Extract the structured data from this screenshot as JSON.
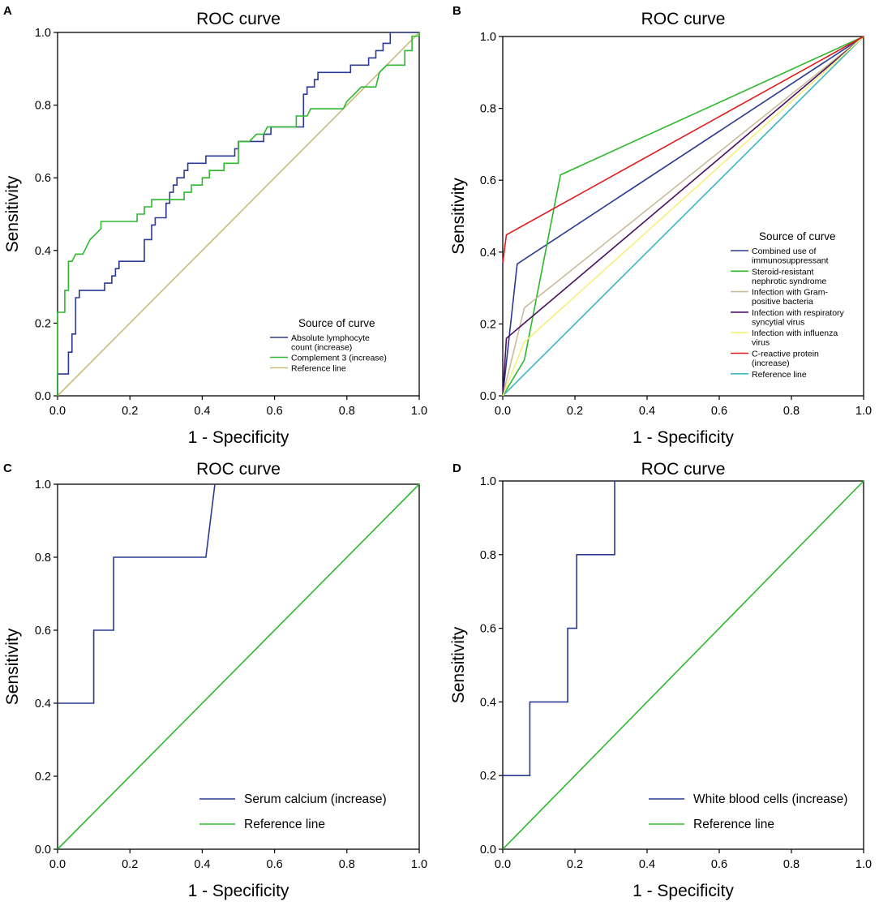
{
  "figure": {
    "panels": [
      {
        "letter": "A",
        "legend_title": "Source of curve"
      },
      {
        "letter": "B",
        "legend_title": "Source of curve"
      },
      {
        "letter": "C",
        "legend_title": ""
      },
      {
        "letter": "D",
        "legend_title": ""
      }
    ]
  },
  "chart_data": [
    {
      "panel": "A",
      "type": "line",
      "title": "ROC curve",
      "xlabel": "1 - Specificity",
      "ylabel": "Sensitivity",
      "xlim": [
        0,
        1
      ],
      "ylim": [
        0,
        1
      ],
      "xticks": [
        "0.0",
        "0.2",
        "0.4",
        "0.6",
        "0.8",
        "1.0"
      ],
      "yticks": [
        "0.0",
        "0.2",
        "0.4",
        "0.6",
        "0.8",
        "1.0"
      ],
      "legend_title": "Source of curve",
      "legend_position": "bottom-right",
      "series": [
        {
          "name": "Absolute lymphocyte count (increase)",
          "legend_lines": [
            "Absolute lymphocyte",
            "count (increase)"
          ],
          "color": "#2b3a93",
          "points": [
            [
              0,
              0
            ],
            [
              0,
              0.06
            ],
            [
              0.03,
              0.06
            ],
            [
              0.03,
              0.12
            ],
            [
              0.04,
              0.12
            ],
            [
              0.04,
              0.17
            ],
            [
              0.05,
              0.17
            ],
            [
              0.05,
              0.27
            ],
            [
              0.06,
              0.27
            ],
            [
              0.06,
              0.29
            ],
            [
              0.13,
              0.29
            ],
            [
              0.13,
              0.31
            ],
            [
              0.15,
              0.31
            ],
            [
              0.15,
              0.33
            ],
            [
              0.16,
              0.33
            ],
            [
              0.16,
              0.35
            ],
            [
              0.17,
              0.35
            ],
            [
              0.17,
              0.37
            ],
            [
              0.24,
              0.37
            ],
            [
              0.24,
              0.43
            ],
            [
              0.26,
              0.43
            ],
            [
              0.26,
              0.47
            ],
            [
              0.27,
              0.47
            ],
            [
              0.27,
              0.49
            ],
            [
              0.3,
              0.49
            ],
            [
              0.3,
              0.53
            ],
            [
              0.31,
              0.53
            ],
            [
              0.31,
              0.56
            ],
            [
              0.32,
              0.56
            ],
            [
              0.32,
              0.58
            ],
            [
              0.33,
              0.58
            ],
            [
              0.33,
              0.6
            ],
            [
              0.35,
              0.6
            ],
            [
              0.35,
              0.62
            ],
            [
              0.36,
              0.62
            ],
            [
              0.36,
              0.64
            ],
            [
              0.41,
              0.64
            ],
            [
              0.41,
              0.66
            ],
            [
              0.49,
              0.66
            ],
            [
              0.49,
              0.68
            ],
            [
              0.5,
              0.68
            ],
            [
              0.5,
              0.7
            ],
            [
              0.57,
              0.7
            ],
            [
              0.57,
              0.72
            ],
            [
              0.59,
              0.72
            ],
            [
              0.59,
              0.74
            ],
            [
              0.68,
              0.74
            ],
            [
              0.68,
              0.83
            ],
            [
              0.69,
              0.83
            ],
            [
              0.69,
              0.85
            ],
            [
              0.71,
              0.85
            ],
            [
              0.71,
              0.87
            ],
            [
              0.72,
              0.87
            ],
            [
              0.72,
              0.89
            ],
            [
              0.81,
              0.89
            ],
            [
              0.81,
              0.91
            ],
            [
              0.86,
              0.91
            ],
            [
              0.86,
              0.93
            ],
            [
              0.88,
              0.93
            ],
            [
              0.88,
              0.95
            ],
            [
              0.9,
              0.95
            ],
            [
              0.9,
              0.97
            ],
            [
              0.92,
              0.97
            ],
            [
              0.92,
              1.0
            ],
            [
              1,
              1
            ]
          ]
        },
        {
          "name": "Complement 3 (increase)",
          "legend_lines": [
            "Complement 3 (increase)"
          ],
          "color": "#2db82d",
          "points": [
            [
              0,
              0
            ],
            [
              0,
              0.23
            ],
            [
              0.02,
              0.23
            ],
            [
              0.02,
              0.29
            ],
            [
              0.03,
              0.29
            ],
            [
              0.03,
              0.37
            ],
            [
              0.04,
              0.37
            ],
            [
              0.05,
              0.39
            ],
            [
              0.07,
              0.39
            ],
            [
              0.08,
              0.41
            ],
            [
              0.09,
              0.43
            ],
            [
              0.1,
              0.44
            ],
            [
              0.12,
              0.46
            ],
            [
              0.12,
              0.48
            ],
            [
              0.22,
              0.48
            ],
            [
              0.22,
              0.5
            ],
            [
              0.24,
              0.5
            ],
            [
              0.24,
              0.52
            ],
            [
              0.26,
              0.52
            ],
            [
              0.26,
              0.54
            ],
            [
              0.35,
              0.54
            ],
            [
              0.35,
              0.56
            ],
            [
              0.37,
              0.56
            ],
            [
              0.37,
              0.58
            ],
            [
              0.4,
              0.58
            ],
            [
              0.4,
              0.6
            ],
            [
              0.42,
              0.6
            ],
            [
              0.42,
              0.62
            ],
            [
              0.46,
              0.62
            ],
            [
              0.46,
              0.64
            ],
            [
              0.5,
              0.64
            ],
            [
              0.5,
              0.7
            ],
            [
              0.53,
              0.7
            ],
            [
              0.55,
              0.72
            ],
            [
              0.57,
              0.72
            ],
            [
              0.58,
              0.74
            ],
            [
              0.66,
              0.74
            ],
            [
              0.66,
              0.77
            ],
            [
              0.69,
              0.77
            ],
            [
              0.7,
              0.79
            ],
            [
              0.79,
              0.79
            ],
            [
              0.8,
              0.81
            ],
            [
              0.82,
              0.83
            ],
            [
              0.84,
              0.85
            ],
            [
              0.88,
              0.85
            ],
            [
              0.89,
              0.89
            ],
            [
              0.91,
              0.91
            ],
            [
              0.96,
              0.91
            ],
            [
              0.96,
              0.95
            ],
            [
              0.98,
              0.95
            ],
            [
              0.98,
              0.99
            ],
            [
              1,
              0.99
            ],
            [
              1,
              1
            ]
          ]
        },
        {
          "name": "Reference line",
          "legend_lines": [
            "Reference line"
          ],
          "color": "#c8bc7a",
          "points": [
            [
              0,
              0
            ],
            [
              1,
              1
            ]
          ]
        }
      ]
    },
    {
      "panel": "B",
      "type": "line",
      "title": "ROC curve",
      "xlabel": "1 - Specificity",
      "ylabel": "Sensitivity",
      "xlim": [
        0,
        1
      ],
      "ylim": [
        0,
        1
      ],
      "xticks": [
        "0.0",
        "0.2",
        "0.4",
        "0.6",
        "0.8",
        "1.0"
      ],
      "yticks": [
        "0.0",
        "0.2",
        "0.4",
        "0.6",
        "0.8",
        "1.0"
      ],
      "legend_title": "Source of curve",
      "legend_position": "bottom-right",
      "series": [
        {
          "name": "Combined use of immunosuppressant",
          "legend_lines": [
            "Combined use of",
            "immunosuppressant"
          ],
          "color": "#2b3a93",
          "points": [
            [
              0,
              0
            ],
            [
              0.04,
              0.367
            ],
            [
              1,
              1
            ]
          ]
        },
        {
          "name": "Steroid-resistant nephrotic syndrome",
          "legend_lines": [
            "Steroid-resistant",
            "nephrotic syndrome"
          ],
          "color": "#2db82d",
          "points": [
            [
              0,
              0
            ],
            [
              0.06,
              0.1
            ],
            [
              0.16,
              0.615
            ],
            [
              1,
              1
            ]
          ]
        },
        {
          "name": "Infection with Gram-positive bacteria",
          "legend_lines": [
            "Infection with Gram-",
            "positive bacteria"
          ],
          "color": "#c8bc9a",
          "points": [
            [
              0,
              0
            ],
            [
              0.06,
              0.245
            ],
            [
              1,
              1
            ]
          ]
        },
        {
          "name": "Infection with respiratory syncytial virus",
          "legend_lines": [
            "Infection with respiratory",
            "syncytial virus"
          ],
          "color": "#4a1060",
          "points": [
            [
              0,
              0
            ],
            [
              0.01,
              0.16
            ],
            [
              1,
              1
            ]
          ]
        },
        {
          "name": "Infection with influenza virus",
          "legend_lines": [
            "Infection with influenza",
            "virus"
          ],
          "color": "#f5f07a",
          "points": [
            [
              0,
              0
            ],
            [
              0.06,
              0.15
            ],
            [
              1,
              1
            ]
          ]
        },
        {
          "name": "C-reactive protein (increase)",
          "legend_lines": [
            "C-reactive protein",
            "(increase)"
          ],
          "color": "#e31a1c",
          "points": [
            [
              0,
              0.37
            ],
            [
              0.01,
              0.448
            ],
            [
              1,
              1
            ]
          ]
        },
        {
          "name": "Reference line",
          "legend_lines": [
            "Reference line"
          ],
          "color": "#3cb5c0",
          "points": [
            [
              0,
              0
            ],
            [
              1,
              1
            ]
          ]
        }
      ]
    },
    {
      "panel": "C",
      "type": "line",
      "title": "ROC curve",
      "xlabel": "1 - Specificity",
      "ylabel": "Sensitivity",
      "xlim": [
        0,
        1
      ],
      "ylim": [
        0,
        1
      ],
      "xticks": [
        "0.0",
        "0.2",
        "0.4",
        "0.6",
        "0.8",
        "1.0"
      ],
      "yticks": [
        "0.0",
        "0.2",
        "0.4",
        "0.6",
        "0.8",
        "1.0"
      ],
      "legend_title": "",
      "legend_position": "bottom-right",
      "series": [
        {
          "name": "Serum calcium (increase)",
          "legend_lines": [
            "Serum calcium (increase)"
          ],
          "color": "#2b3a93",
          "points": [
            [
              0,
              0.4
            ],
            [
              0.1,
              0.4
            ],
            [
              0.1,
              0.6
            ],
            [
              0.155,
              0.6
            ],
            [
              0.155,
              0.8
            ],
            [
              0.41,
              0.8
            ],
            [
              0.435,
              1.0
            ]
          ]
        },
        {
          "name": "Reference line",
          "legend_lines": [
            "Reference line"
          ],
          "color": "#2db82d",
          "points": [
            [
              0,
              0
            ],
            [
              1,
              1
            ]
          ]
        }
      ]
    },
    {
      "panel": "D",
      "type": "line",
      "title": "ROC curve",
      "xlabel": "1 - Specificity",
      "ylabel": "Sensitivity",
      "xlim": [
        0,
        1
      ],
      "ylim": [
        0,
        1
      ],
      "xticks": [
        "0.0",
        "0.2",
        "0.4",
        "0.6",
        "0.8",
        "1.0"
      ],
      "yticks": [
        "0.0",
        "0.2",
        "0.4",
        "0.6",
        "0.8",
        "1.0"
      ],
      "legend_title": "",
      "legend_position": "bottom-right",
      "series": [
        {
          "name": "White blood cells (increase)",
          "legend_lines": [
            "White blood cells (increase)"
          ],
          "color": "#2b3a93",
          "points": [
            [
              0,
              0.2
            ],
            [
              0.075,
              0.2
            ],
            [
              0.075,
              0.4
            ],
            [
              0.18,
              0.4
            ],
            [
              0.18,
              0.6
            ],
            [
              0.205,
              0.6
            ],
            [
              0.205,
              0.8
            ],
            [
              0.31,
              0.8
            ],
            [
              0.31,
              1.0
            ]
          ]
        },
        {
          "name": "Reference line",
          "legend_lines": [
            "Reference line"
          ],
          "color": "#2db82d",
          "points": [
            [
              0,
              0
            ],
            [
              1,
              1
            ]
          ]
        }
      ]
    }
  ]
}
